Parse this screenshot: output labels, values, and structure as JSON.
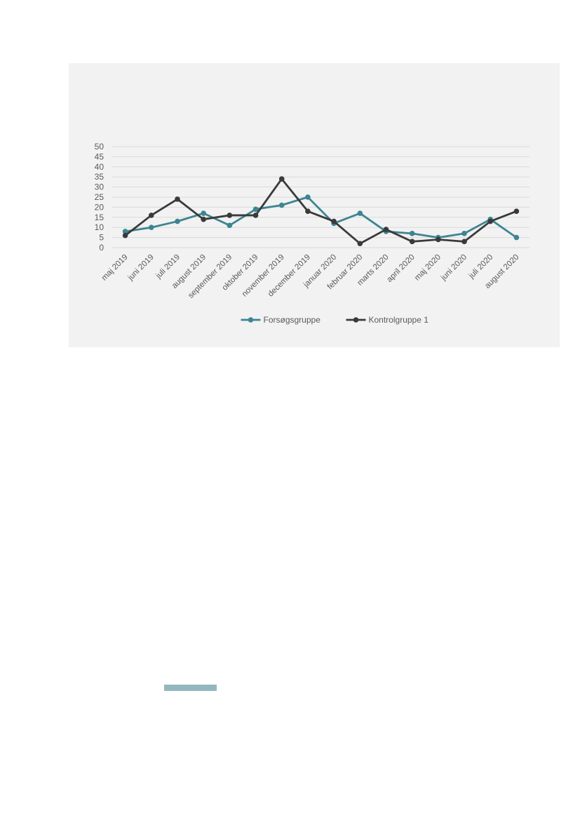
{
  "chart_data": {
    "type": "line",
    "categories": [
      "maj 2019",
      "juni 2019",
      "juli 2019",
      "august 2019",
      "september 2019",
      "oktober 2019",
      "november 2019",
      "december 2019",
      "januar 2020",
      "februar 2020",
      "marts 2020",
      "april 2020",
      "maj 2020",
      "juni 2020",
      "juli 2020",
      "august 2020"
    ],
    "series": [
      {
        "name": "Forsøgsgruppe",
        "color": "#3d8593",
        "values": [
          8,
          10,
          13,
          17,
          11,
          19,
          21,
          25,
          12,
          17,
          8,
          7,
          5,
          7,
          14,
          5
        ]
      },
      {
        "name": "Kontrolgruppe 1",
        "color": "#3a3a3a",
        "values": [
          6,
          16,
          24,
          14,
          16,
          16,
          34,
          18,
          13,
          2,
          9,
          3,
          4,
          3,
          13,
          18
        ]
      }
    ],
    "y_ticks": [
      "0",
      "5",
      "10",
      "15",
      "20",
      "25",
      "30",
      "35",
      "40",
      "45",
      "50"
    ],
    "ylim": [
      0,
      50
    ],
    "grid": true,
    "legend_position": "bottom-center"
  },
  "colors": {
    "panel_background": "#f2f2f2",
    "gridline": "#d9d9d9",
    "accent_bar": "#93b7bf"
  }
}
